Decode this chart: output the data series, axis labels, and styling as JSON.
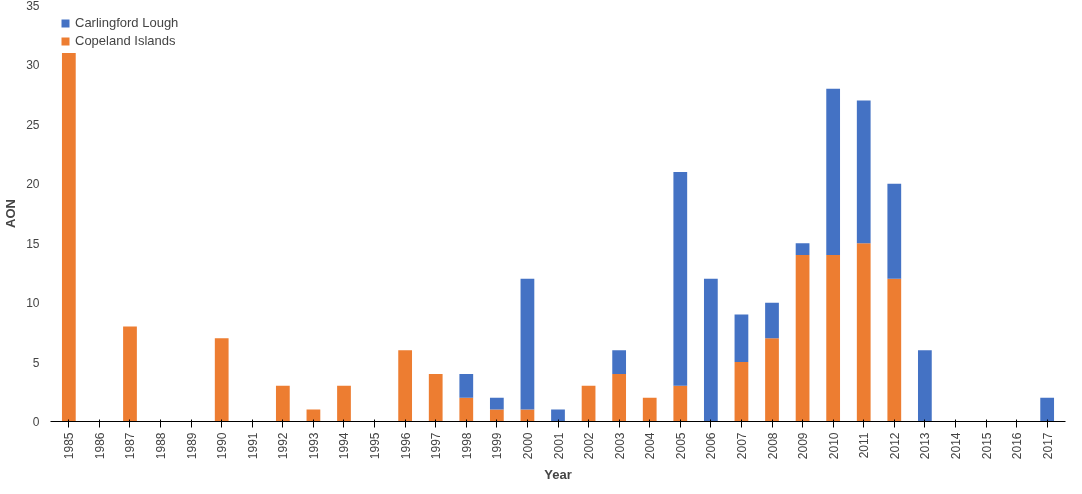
{
  "chart_data": {
    "type": "bar",
    "stacked": true,
    "xlabel": "Year",
    "ylabel": "AON",
    "categories": [
      "1985",
      "1986",
      "1987",
      "1988",
      "1989",
      "1990",
      "1991",
      "1992",
      "1993",
      "1994",
      "1995",
      "1996",
      "1997",
      "1998",
      "1999",
      "2000",
      "2001",
      "2002",
      "2003",
      "2004",
      "2005",
      "2006",
      "2007",
      "2008",
      "2009",
      "2010",
      "2011",
      "2012",
      "2013",
      "2014",
      "2015",
      "2016",
      "2017"
    ],
    "series": [
      {
        "name": "Copeland Islands",
        "color": "#ed7d31",
        "values": [
          31,
          0,
          8,
          0,
          0,
          7,
          0,
          3,
          1,
          3,
          0,
          6,
          4,
          2,
          1,
          1,
          0,
          3,
          4,
          2,
          3,
          0,
          5,
          7,
          14,
          14,
          15,
          12,
          0,
          0,
          0,
          0,
          0
        ]
      },
      {
        "name": "Carlingford Lough",
        "color": "#4472c4",
        "values": [
          0,
          0,
          0,
          0,
          0,
          0,
          0,
          0,
          0,
          0,
          0,
          0,
          0,
          2,
          1,
          11,
          1,
          0,
          2,
          0,
          18,
          12,
          4,
          3,
          1,
          14,
          12,
          8,
          6,
          0,
          0,
          0,
          2
        ]
      }
    ],
    "ylim": [
      0,
      35
    ],
    "yticks": [
      0,
      5,
      10,
      15,
      20,
      25,
      30,
      35
    ],
    "grid": false,
    "legend": "top left"
  }
}
